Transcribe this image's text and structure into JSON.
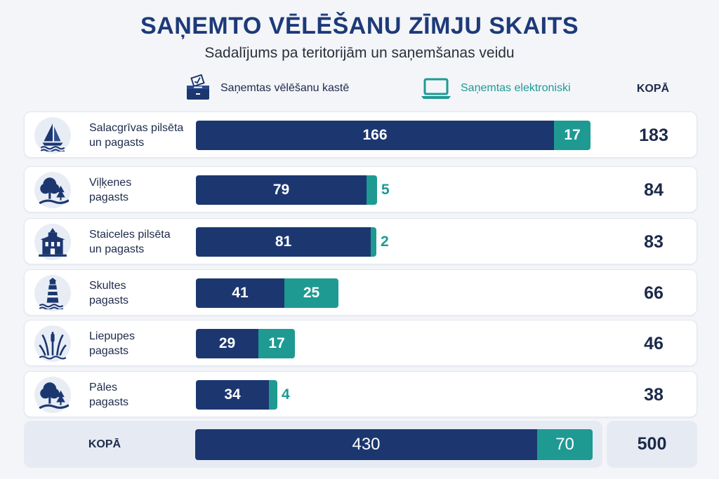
{
  "header": {
    "title": "SAŅEMTO VĒLĒŠANU ZĪMJU SKAITS",
    "subtitle": "Sadalījums pa teritorijām un saņemšanas veidu",
    "total_header": "KOPĀ"
  },
  "legend": {
    "box_label": "Saņemtas vēlēšanu kastē",
    "box_icon": "ballot-box-icon",
    "electronic_label": "Saņemtas elektroniski",
    "electronic_icon": "laptop-icon"
  },
  "colors": {
    "box": "#1c3770",
    "electronic": "#1e9a93",
    "background": "#f3f5f9"
  },
  "rows": [
    {
      "label_line1": "Salacgrīvas pilsēta",
      "label_line2": "un pagasts",
      "icon": "sailboat-icon",
      "box": "166",
      "electronic": "17",
      "total": "183"
    },
    {
      "label_line1": "Viļķenes",
      "label_line2": "pagasts",
      "icon": "tree-icon",
      "box": "79",
      "electronic": "5",
      "total": "84"
    },
    {
      "label_line1": "Staiceles pilsēta",
      "label_line2": "un pagasts",
      "icon": "building-icon",
      "box": "81",
      "electronic": "2",
      "total": "83"
    },
    {
      "label_line1": "Skultes",
      "label_line2": "pagasts",
      "icon": "lighthouse-icon",
      "box": "41",
      "electronic": "25",
      "total": "66"
    },
    {
      "label_line1": "Liepupes",
      "label_line2": "pagasts",
      "icon": "reeds-icon",
      "box": "29",
      "electronic": "17",
      "total": "46"
    },
    {
      "label_line1": "Pāles",
      "label_line2": "pagasts",
      "icon": "tree-icon",
      "box": "34",
      "electronic": "4",
      "total": "38"
    }
  ],
  "total_row": {
    "label": "KOPĀ",
    "box": "430",
    "electronic": "70",
    "total": "500"
  },
  "chart_data": {
    "type": "bar",
    "orientation": "horizontal",
    "stacked": true,
    "title": "SAŅEMTO VĒLĒŠANU ZĪMJU SKAITS",
    "subtitle": "Sadalījums pa teritorijām un saņemšanas veidu",
    "categories": [
      "Salacgrīvas pilsēta un pagasts",
      "Viļķenes pagasts",
      "Staiceles pilsēta un pagasts",
      "Skultes pagasts",
      "Liepupes pagasts",
      "Pāles pagasts"
    ],
    "series": [
      {
        "name": "Saņemtas vēlēšanu kastē",
        "values": [
          166,
          79,
          81,
          41,
          29,
          34
        ]
      },
      {
        "name": "Saņemtas elektroniski",
        "values": [
          17,
          5,
          2,
          25,
          17,
          4
        ]
      }
    ],
    "totals": [
      183,
      84,
      83,
      66,
      46,
      38
    ],
    "grand_total": {
      "box": 430,
      "electronic": 70,
      "total": 500
    },
    "legend": "top"
  }
}
